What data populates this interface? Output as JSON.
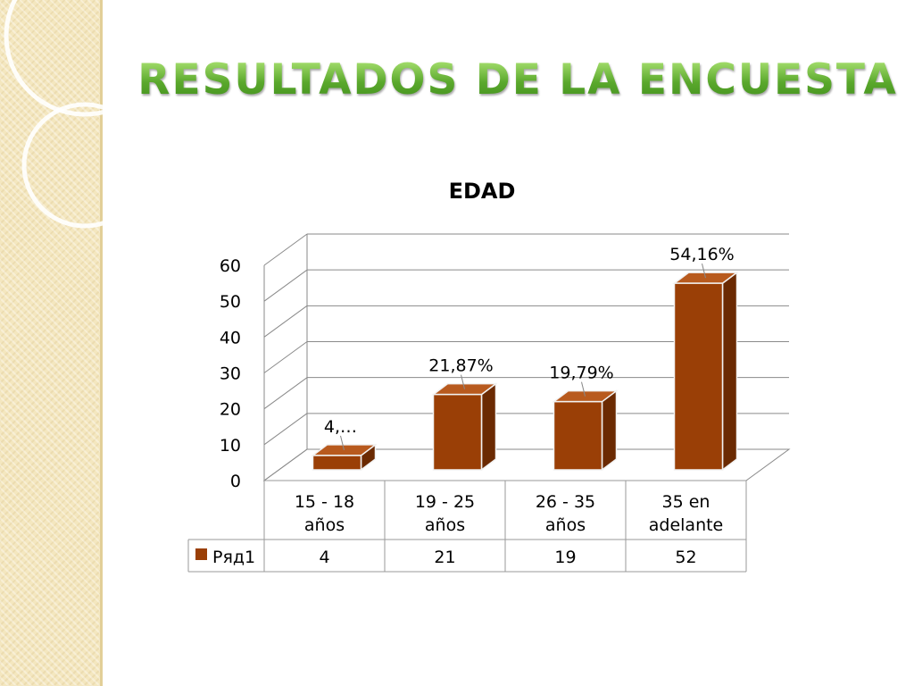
{
  "slide": {
    "title": "RESULTADOS DE LA ENCUESTA"
  },
  "colors": {
    "title": "#5aa82c",
    "bar_front": "#9a3f06",
    "bar_side": "#6b2a02",
    "bar_top": "#b85a1e",
    "strip": "#f4e7bf"
  },
  "chart_data": {
    "type": "bar",
    "title": "EDAD",
    "categories": [
      "15 - 18 años",
      "19 - 25 años",
      "26 - 35 años",
      "35 en adelante"
    ],
    "category_lines": [
      [
        "15 - 18",
        "años"
      ],
      [
        "19 - 25",
        "años"
      ],
      [
        "26 - 35",
        "años"
      ],
      [
        "35 en",
        "adelante"
      ]
    ],
    "series": [
      {
        "name": "Ряд1",
        "values": [
          4,
          21,
          19,
          52
        ]
      }
    ],
    "data_labels": [
      "4,…",
      "21,87%",
      "19,79%",
      "54,16%"
    ],
    "y_ticks": [
      "0",
      "10",
      "20",
      "30",
      "40",
      "50",
      "60"
    ],
    "ylim": [
      0,
      60
    ],
    "grid": true,
    "legend": "data-table",
    "three_d": true
  }
}
